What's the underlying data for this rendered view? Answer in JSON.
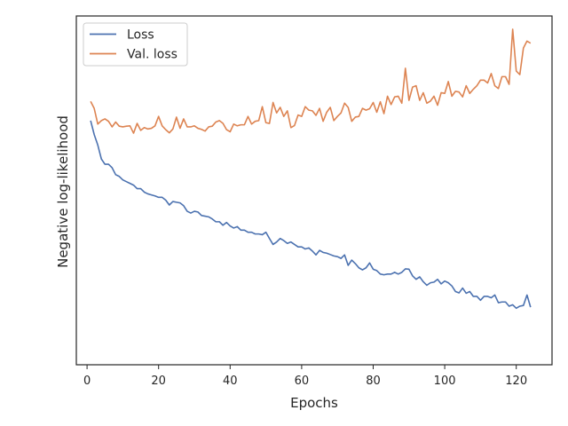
{
  "chart_data": {
    "type": "line",
    "title": "",
    "xlabel": "Epochs",
    "ylabel": "Negative log-likelihood",
    "xlim": [
      -3,
      130
    ],
    "ylim": [
      0,
      1
    ],
    "x_ticks": [
      0,
      20,
      40,
      60,
      80,
      100,
      120
    ],
    "y_ticks_shown": false,
    "grid": false,
    "legend_position": "top-left",
    "series": [
      {
        "name": "Loss",
        "color": "#4c72b0",
        "x": [
          1,
          2,
          3,
          4,
          5,
          6,
          7,
          8,
          9,
          10,
          11,
          12,
          13,
          14,
          15,
          16,
          17,
          18,
          19,
          20,
          21,
          22,
          23,
          24,
          25,
          26,
          27,
          28,
          29,
          30,
          31,
          32,
          33,
          34,
          35,
          36,
          37,
          38,
          39,
          40,
          41,
          42,
          43,
          44,
          45,
          46,
          47,
          48,
          49,
          50,
          51,
          52,
          53,
          54,
          55,
          56,
          57,
          58,
          59,
          60,
          61,
          62,
          63,
          64,
          65,
          66,
          67,
          68,
          69,
          70,
          71,
          72,
          73,
          74,
          75,
          76,
          77,
          78,
          79,
          80,
          81,
          82,
          83,
          84,
          85,
          86,
          87,
          88,
          89,
          90,
          91,
          92,
          93,
          94,
          95,
          96,
          97,
          98,
          99,
          100,
          101,
          102,
          103,
          104,
          105,
          106,
          107,
          108,
          109,
          110,
          111,
          112,
          113,
          114,
          115,
          116,
          117,
          118,
          119,
          120,
          121,
          122,
          123,
          124
        ],
        "values": [
          0.7,
          0.66,
          0.63,
          0.59,
          0.575,
          0.575,
          0.565,
          0.545,
          0.54,
          0.53,
          0.525,
          0.52,
          0.515,
          0.505,
          0.505,
          0.495,
          0.49,
          0.487,
          0.484,
          0.48,
          0.48,
          0.472,
          0.458,
          0.468,
          0.466,
          0.464,
          0.456,
          0.44,
          0.435,
          0.44,
          0.438,
          0.428,
          0.426,
          0.424,
          0.418,
          0.41,
          0.41,
          0.4,
          0.408,
          0.398,
          0.392,
          0.396,
          0.386,
          0.386,
          0.38,
          0.38,
          0.375,
          0.375,
          0.373,
          0.38,
          0.362,
          0.345,
          0.352,
          0.362,
          0.356,
          0.348,
          0.352,
          0.345,
          0.338,
          0.338,
          0.332,
          0.335,
          0.326,
          0.315,
          0.328,
          0.322,
          0.32,
          0.316,
          0.312,
          0.31,
          0.305,
          0.315,
          0.285,
          0.3,
          0.29,
          0.278,
          0.272,
          0.278,
          0.292,
          0.274,
          0.27,
          0.26,
          0.258,
          0.26,
          0.26,
          0.265,
          0.26,
          0.265,
          0.275,
          0.274,
          0.255,
          0.245,
          0.252,
          0.238,
          0.228,
          0.235,
          0.237,
          0.245,
          0.232,
          0.24,
          0.235,
          0.226,
          0.21,
          0.206,
          0.22,
          0.205,
          0.21,
          0.196,
          0.196,
          0.185,
          0.196,
          0.196,
          0.192,
          0.2,
          0.178,
          0.18,
          0.18,
          0.168,
          0.172,
          0.162,
          0.168,
          0.17,
          0.2,
          0.165
        ]
      },
      {
        "name": "Val. loss",
        "color": "#dd8452",
        "x": [
          1,
          2,
          3,
          4,
          5,
          6,
          7,
          8,
          9,
          10,
          11,
          12,
          13,
          14,
          15,
          16,
          17,
          18,
          19,
          20,
          21,
          22,
          23,
          24,
          25,
          26,
          27,
          28,
          29,
          30,
          31,
          32,
          33,
          34,
          35,
          36,
          37,
          38,
          39,
          40,
          41,
          42,
          43,
          44,
          45,
          46,
          47,
          48,
          49,
          50,
          51,
          52,
          53,
          54,
          55,
          56,
          57,
          58,
          59,
          60,
          61,
          62,
          63,
          64,
          65,
          66,
          67,
          68,
          69,
          70,
          71,
          72,
          73,
          74,
          75,
          76,
          77,
          78,
          79,
          80,
          81,
          82,
          83,
          84,
          85,
          86,
          87,
          88,
          89,
          90,
          91,
          92,
          93,
          94,
          95,
          96,
          97,
          98,
          99,
          100,
          101,
          102,
          103,
          104,
          105,
          106,
          107,
          108,
          109,
          110,
          111,
          112,
          113,
          114,
          115,
          116,
          117,
          118,
          119,
          120,
          121,
          122,
          123,
          124
        ],
        "values": [
          0.755,
          0.735,
          0.69,
          0.7,
          0.705,
          0.698,
          0.682,
          0.696,
          0.684,
          0.682,
          0.684,
          0.685,
          0.664,
          0.692,
          0.672,
          0.68,
          0.676,
          0.678,
          0.685,
          0.712,
          0.685,
          0.674,
          0.665,
          0.676,
          0.71,
          0.678,
          0.705,
          0.682,
          0.682,
          0.685,
          0.678,
          0.675,
          0.67,
          0.682,
          0.684,
          0.696,
          0.7,
          0.692,
          0.674,
          0.668,
          0.69,
          0.685,
          0.688,
          0.688,
          0.712,
          0.69,
          0.698,
          0.7,
          0.74,
          0.694,
          0.692,
          0.752,
          0.722,
          0.738,
          0.712,
          0.728,
          0.68,
          0.686,
          0.716,
          0.712,
          0.74,
          0.73,
          0.728,
          0.715,
          0.735,
          0.698,
          0.724,
          0.738,
          0.7,
          0.712,
          0.722,
          0.75,
          0.738,
          0.698,
          0.71,
          0.712,
          0.735,
          0.73,
          0.734,
          0.752,
          0.724,
          0.754,
          0.72,
          0.77,
          0.746,
          0.768,
          0.77,
          0.75,
          0.85,
          0.758,
          0.796,
          0.8,
          0.758,
          0.78,
          0.75,
          0.756,
          0.77,
          0.744,
          0.78,
          0.778,
          0.812,
          0.77,
          0.784,
          0.782,
          0.768,
          0.8,
          0.778,
          0.79,
          0.8,
          0.816,
          0.816,
          0.808,
          0.835,
          0.8,
          0.792,
          0.826,
          0.826,
          0.804,
          0.962,
          0.842,
          0.832,
          0.908,
          0.928,
          0.922
        ]
      }
    ]
  }
}
